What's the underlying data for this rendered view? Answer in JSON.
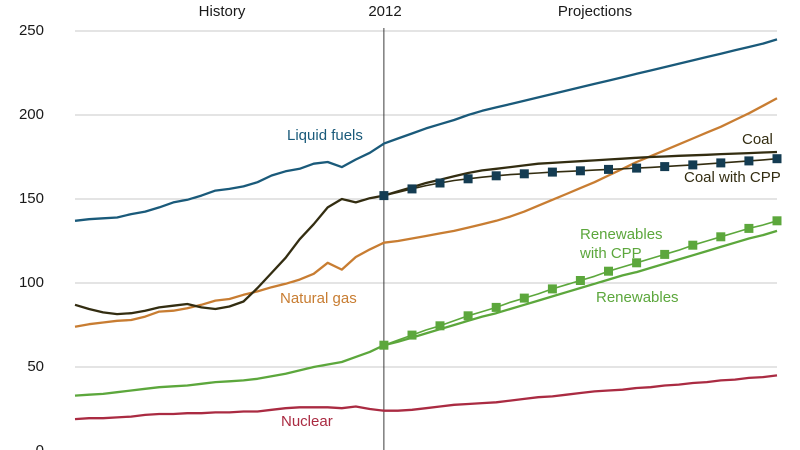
{
  "header": {
    "history": "History",
    "divider_year": "2012",
    "projections": "Projections"
  },
  "colors": {
    "gridline": "#c9c9c9",
    "divider_line": "#3c3c3c",
    "text": "#1a1a1a",
    "liquid_fuels": "#1a5a7a",
    "coal": "#332d11",
    "coal_cpp_marker": "#143c52",
    "natural_gas": "#c87d32",
    "renewables": "#5ca73c",
    "nuclear": "#aa2b42"
  },
  "chart_data": {
    "type": "line",
    "x_range": [
      1990,
      2040
    ],
    "ylim": [
      0,
      250
    ],
    "yticks": [
      0,
      50,
      100,
      150,
      200,
      250
    ],
    "grid": "horizontal",
    "divider": {
      "x": 2012,
      "label": "2012"
    },
    "annotations": {
      "history": "History",
      "projections": "Projections"
    },
    "series": [
      {
        "name": "Liquid fuels",
        "color": "#1a5a7a",
        "style": "solid",
        "start_year": 1990,
        "values": [
          137,
          138,
          138.5,
          139,
          141,
          142.5,
          145,
          148,
          149.5,
          152,
          155,
          156,
          157.5,
          160,
          164,
          166.5,
          168,
          171,
          172,
          169,
          173.5,
          177.5,
          183,
          186,
          189,
          192,
          194.5,
          197,
          200,
          202.5,
          204.5,
          206.5,
          208.5,
          210.5,
          212.5,
          214.5,
          216.5,
          218.5,
          220.5,
          222.5,
          224.5,
          226.5,
          228.5,
          230.5,
          232.5,
          234.5,
          236.5,
          238.5,
          240.5,
          242.5,
          245
        ]
      },
      {
        "name": "Coal",
        "color": "#332d11",
        "style": "solid",
        "start_year": 1990,
        "values": [
          87,
          84.5,
          82.5,
          81.5,
          82,
          83.5,
          85.5,
          86.5,
          87.5,
          85.5,
          84.5,
          86,
          89,
          97,
          106,
          115,
          126,
          135,
          145,
          150,
          148,
          150.5,
          152,
          154.5,
          157,
          159.5,
          161.5,
          163.5,
          165.5,
          167,
          168,
          169,
          170,
          171,
          171.5,
          172,
          172.5,
          173,
          173.5,
          174,
          174.5,
          175,
          175.3,
          175.7,
          176,
          176.3,
          176.7,
          177,
          177.3,
          177.7,
          178
        ]
      },
      {
        "name": "Coal with CPP",
        "color": "#332d11",
        "marker_color": "#143c52",
        "style": "square-markers",
        "marker": "square",
        "marker_every_years": 2,
        "start_year": 2012,
        "values": [
          152,
          154,
          156,
          158,
          159.5,
          161,
          162,
          163,
          163.8,
          164.5,
          165,
          165.5,
          166,
          166.4,
          166.8,
          167.2,
          167.6,
          168,
          168.4,
          168.8,
          169.3,
          169.8,
          170.3,
          170.9,
          171.5,
          172.1,
          172.7,
          173.3,
          174
        ]
      },
      {
        "name": "Natural gas",
        "color": "#c87d32",
        "style": "solid",
        "start_year": 1990,
        "values": [
          74,
          75.5,
          76.5,
          77.5,
          78,
          80,
          83,
          83.5,
          85,
          87,
          89.5,
          90.5,
          93,
          95,
          97.5,
          99.5,
          102,
          105.5,
          112,
          108,
          115.5,
          120,
          124,
          125,
          126.5,
          128,
          129.5,
          131,
          133,
          135,
          137,
          139.5,
          142.5,
          146,
          149.5,
          153,
          156.5,
          160,
          164,
          168,
          172,
          175.5,
          179,
          182.5,
          186,
          189.5,
          193,
          197,
          201,
          205.5,
          210
        ]
      },
      {
        "name": "Renewables",
        "color": "#5ca73c",
        "style": "solid",
        "start_year": 1990,
        "values": [
          33,
          33.5,
          34,
          35,
          36,
          37,
          38,
          38.5,
          39,
          40,
          41,
          41.5,
          42,
          43,
          44.5,
          46,
          48,
          50,
          51.5,
          53,
          56,
          59,
          63,
          65,
          67.5,
          70,
          72.5,
          75,
          77.5,
          80,
          82,
          84.5,
          87,
          89.5,
          92,
          94.5,
          97,
          99.5,
          102,
          104.5,
          106.5,
          109,
          111.5,
          114,
          116.5,
          119,
          121.5,
          124,
          126.5,
          128.5,
          131
        ]
      },
      {
        "name": "Renewables with CPP",
        "color": "#5ca73c",
        "marker_color": "#5ca73c",
        "style": "square-markers",
        "marker": "square",
        "marker_every_years": 2,
        "start_year": 2012,
        "values": [
          63,
          66,
          69,
          72,
          74.5,
          77.5,
          80.5,
          83,
          85.5,
          88.5,
          91,
          93.5,
          96.5,
          99,
          101.5,
          104,
          107,
          109.5,
          112,
          114.5,
          117,
          119.5,
          122.5,
          125,
          127.5,
          130,
          132.5,
          134.5,
          137
        ]
      },
      {
        "name": "Nuclear",
        "color": "#aa2b42",
        "style": "solid",
        "start_year": 1990,
        "values": [
          19,
          19.5,
          19.5,
          20,
          20.5,
          21.5,
          22,
          22,
          22.5,
          22.5,
          23,
          23,
          23.5,
          23.5,
          24.5,
          25.5,
          26,
          26,
          26,
          25.5,
          26.5,
          25,
          24,
          24,
          24.5,
          25.5,
          26.5,
          27.5,
          28,
          28.5,
          29,
          30,
          31,
          32,
          32.5,
          33.5,
          34.5,
          35.5,
          36,
          36.5,
          37.5,
          38,
          39,
          39.5,
          40.5,
          41,
          42,
          42.5,
          43.5,
          44,
          45
        ]
      }
    ]
  }
}
